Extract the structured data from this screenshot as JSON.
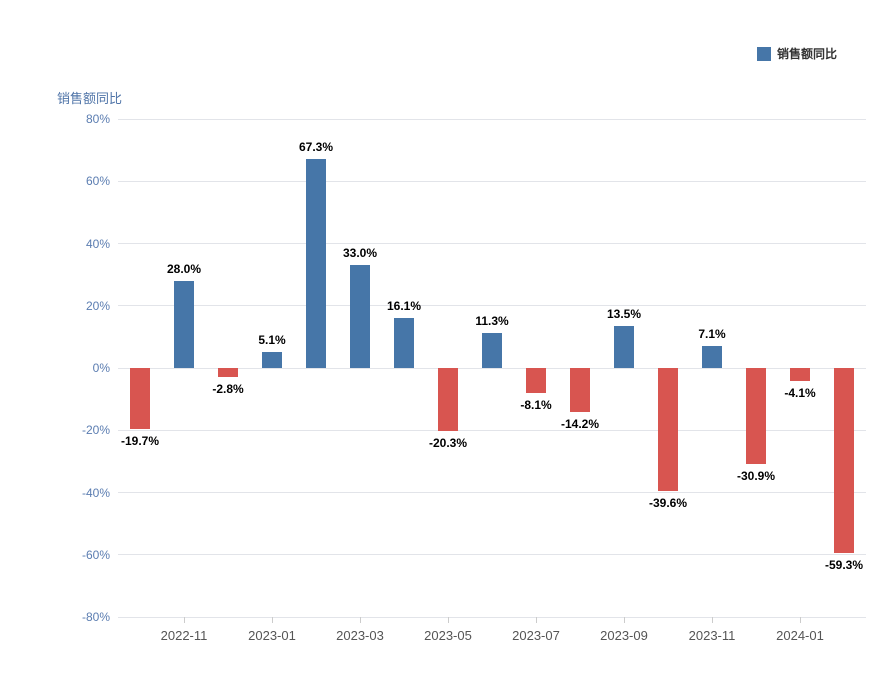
{
  "title": "销售额同比",
  "legend": {
    "label": "销售额同比",
    "color": "#4676a8"
  },
  "chart_data": {
    "type": "bar",
    "title": "销售额同比",
    "legend_entries": [
      "销售额同比"
    ],
    "series_name": "销售额同比",
    "values": [
      -19.7,
      28.0,
      -2.8,
      5.1,
      67.3,
      33.0,
      16.1,
      -20.3,
      11.3,
      -8.1,
      -14.2,
      13.5,
      -39.6,
      7.1,
      -30.9,
      -4.1,
      -59.3
    ],
    "labels": [
      "-19.7%",
      "28.0%",
      "-2.8%",
      "5.1%",
      "67.3%",
      "33.0%",
      "16.1%",
      "-20.3%",
      "11.3%",
      "-8.1%",
      "-14.2%",
      "13.5%",
      "-39.6%",
      "7.1%",
      "-30.9%",
      "-4.1%",
      "-59.3%"
    ],
    "x_tick_labels": [
      "2022-11",
      "2023-01",
      "2023-03",
      "2023-05",
      "2023-07",
      "2023-09",
      "2023-11",
      "2024-01"
    ],
    "x_tick_bar_indices": [
      1,
      3,
      5,
      7,
      9,
      11,
      13,
      15
    ],
    "y_ticks": [
      "80%",
      "60%",
      "40%",
      "20%",
      "0%",
      "-20%",
      "-40%",
      "-60%",
      "-80%"
    ],
    "ylim": [
      -80,
      80
    ],
    "grid": true,
    "legend_position": "top-right",
    "positive_color": "#4676a8",
    "negative_color": "#d85550"
  }
}
